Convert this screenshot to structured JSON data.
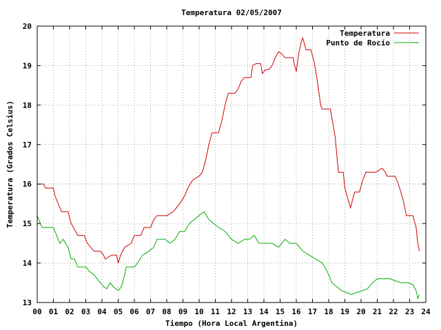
{
  "chart_data": {
    "type": "line",
    "title": "Temperatura 02/05/2007",
    "xlabel": "Tiempo (Hora Local Argentina)",
    "ylabel": "Temperatura (Grados Celsius)",
    "xlim": [
      0,
      24
    ],
    "ylim": [
      13,
      20
    ],
    "x_ticks": [
      "00",
      "01",
      "02",
      "03",
      "04",
      "05",
      "06",
      "07",
      "08",
      "09",
      "10",
      "11",
      "12",
      "13",
      "14",
      "15",
      "16",
      "17",
      "18",
      "19",
      "20",
      "21",
      "22",
      "23",
      "24"
    ],
    "y_ticks": [
      "13",
      "14",
      "15",
      "16",
      "17",
      "18",
      "19",
      "20"
    ],
    "grid": true,
    "legend_position": "top-right",
    "series": [
      {
        "name": "Temperatura",
        "color": "#cc0000",
        "points": [
          [
            0.0,
            16.0
          ],
          [
            0.4,
            16.0
          ],
          [
            0.5,
            15.9
          ],
          [
            1.0,
            15.9
          ],
          [
            1.1,
            15.7
          ],
          [
            1.3,
            15.5
          ],
          [
            1.5,
            15.3
          ],
          [
            1.9,
            15.3
          ],
          [
            2.1,
            15.0
          ],
          [
            2.5,
            14.7
          ],
          [
            2.9,
            14.7
          ],
          [
            3.1,
            14.5
          ],
          [
            3.5,
            14.3
          ],
          [
            3.9,
            14.3
          ],
          [
            4.1,
            14.2
          ],
          [
            4.2,
            14.1
          ],
          [
            4.6,
            14.2
          ],
          [
            4.9,
            14.2
          ],
          [
            5.0,
            14.0
          ],
          [
            5.15,
            14.2
          ],
          [
            5.4,
            14.4
          ],
          [
            5.8,
            14.5
          ],
          [
            6.0,
            14.7
          ],
          [
            6.4,
            14.7
          ],
          [
            6.6,
            14.9
          ],
          [
            7.0,
            14.9
          ],
          [
            7.2,
            15.1
          ],
          [
            7.4,
            15.2
          ],
          [
            8.0,
            15.2
          ],
          [
            8.4,
            15.3
          ],
          [
            8.8,
            15.5
          ],
          [
            9.1,
            15.7
          ],
          [
            9.3,
            15.9
          ],
          [
            9.6,
            16.1
          ],
          [
            10.0,
            16.2
          ],
          [
            10.2,
            16.3
          ],
          [
            10.4,
            16.6
          ],
          [
            10.6,
            17.0
          ],
          [
            10.8,
            17.3
          ],
          [
            11.2,
            17.3
          ],
          [
            11.4,
            17.6
          ],
          [
            11.6,
            18.0
          ],
          [
            11.8,
            18.3
          ],
          [
            12.2,
            18.3
          ],
          [
            12.4,
            18.4
          ],
          [
            12.6,
            18.6
          ],
          [
            12.8,
            18.7
          ],
          [
            13.2,
            18.7
          ],
          [
            13.3,
            19.0
          ],
          [
            13.5,
            19.05
          ],
          [
            13.8,
            19.05
          ],
          [
            13.9,
            18.8
          ],
          [
            14.1,
            18.9
          ],
          [
            14.3,
            18.9
          ],
          [
            14.5,
            19.0
          ],
          [
            14.7,
            19.2
          ],
          [
            14.9,
            19.35
          ],
          [
            15.1,
            19.3
          ],
          [
            15.3,
            19.2
          ],
          [
            15.8,
            19.2
          ],
          [
            15.9,
            19.0
          ],
          [
            16.0,
            18.85
          ],
          [
            16.15,
            19.3
          ],
          [
            16.3,
            19.6
          ],
          [
            16.4,
            19.7
          ],
          [
            16.6,
            19.4
          ],
          [
            16.9,
            19.4
          ],
          [
            17.1,
            19.1
          ],
          [
            17.3,
            18.6
          ],
          [
            17.5,
            18.0
          ],
          [
            17.6,
            17.9
          ],
          [
            18.1,
            17.9
          ],
          [
            18.4,
            17.2
          ],
          [
            18.6,
            16.3
          ],
          [
            18.9,
            16.3
          ],
          [
            19.0,
            15.9
          ],
          [
            19.2,
            15.6
          ],
          [
            19.35,
            15.4
          ],
          [
            19.6,
            15.8
          ],
          [
            19.9,
            15.8
          ],
          [
            20.1,
            16.1
          ],
          [
            20.3,
            16.3
          ],
          [
            20.9,
            16.3
          ],
          [
            21.1,
            16.35
          ],
          [
            21.3,
            16.4
          ],
          [
            21.5,
            16.3
          ],
          [
            21.6,
            16.2
          ],
          [
            22.1,
            16.2
          ],
          [
            22.3,
            16.0
          ],
          [
            22.6,
            15.6
          ],
          [
            22.8,
            15.2
          ],
          [
            23.2,
            15.2
          ],
          [
            23.4,
            14.9
          ],
          [
            23.5,
            14.5
          ],
          [
            23.6,
            14.3
          ]
        ]
      },
      {
        "name": "Punto de Rocío",
        "color": "#00aa00",
        "points": [
          [
            0.0,
            15.2
          ],
          [
            0.15,
            15.05
          ],
          [
            0.3,
            14.9
          ],
          [
            1.0,
            14.9
          ],
          [
            1.2,
            14.7
          ],
          [
            1.4,
            14.5
          ],
          [
            1.6,
            14.6
          ],
          [
            1.9,
            14.4
          ],
          [
            2.1,
            14.1
          ],
          [
            2.3,
            14.1
          ],
          [
            2.5,
            13.9
          ],
          [
            3.0,
            13.9
          ],
          [
            3.2,
            13.8
          ],
          [
            3.5,
            13.7
          ],
          [
            3.9,
            13.5
          ],
          [
            4.1,
            13.4
          ],
          [
            4.3,
            13.35
          ],
          [
            4.5,
            13.5
          ],
          [
            4.7,
            13.4
          ],
          [
            5.0,
            13.3
          ],
          [
            5.2,
            13.4
          ],
          [
            5.4,
            13.7
          ],
          [
            5.5,
            13.9
          ],
          [
            6.0,
            13.9
          ],
          [
            6.2,
            14.0
          ],
          [
            6.5,
            14.2
          ],
          [
            6.9,
            14.3
          ],
          [
            7.2,
            14.4
          ],
          [
            7.4,
            14.6
          ],
          [
            7.9,
            14.6
          ],
          [
            8.2,
            14.5
          ],
          [
            8.5,
            14.6
          ],
          [
            8.8,
            14.8
          ],
          [
            9.1,
            14.8
          ],
          [
            9.4,
            15.0
          ],
          [
            9.7,
            15.1
          ],
          [
            10.0,
            15.2
          ],
          [
            10.3,
            15.3
          ],
          [
            10.6,
            15.1
          ],
          [
            10.9,
            15.0
          ],
          [
            11.2,
            14.9
          ],
          [
            11.6,
            14.8
          ],
          [
            12.0,
            14.6
          ],
          [
            12.4,
            14.5
          ],
          [
            12.8,
            14.6
          ],
          [
            13.1,
            14.6
          ],
          [
            13.4,
            14.7
          ],
          [
            13.7,
            14.5
          ],
          [
            14.1,
            14.5
          ],
          [
            14.5,
            14.5
          ],
          [
            14.9,
            14.4
          ],
          [
            15.3,
            14.6
          ],
          [
            15.6,
            14.5
          ],
          [
            16.0,
            14.5
          ],
          [
            16.4,
            14.3
          ],
          [
            16.8,
            14.2
          ],
          [
            17.2,
            14.1
          ],
          [
            17.6,
            14.0
          ],
          [
            17.9,
            13.8
          ],
          [
            18.2,
            13.5
          ],
          [
            18.5,
            13.4
          ],
          [
            18.8,
            13.3
          ],
          [
            19.1,
            13.25
          ],
          [
            19.4,
            13.2
          ],
          [
            19.7,
            13.25
          ],
          [
            20.1,
            13.3
          ],
          [
            20.4,
            13.35
          ],
          [
            20.7,
            13.5
          ],
          [
            21.0,
            13.6
          ],
          [
            21.4,
            13.6
          ],
          [
            21.8,
            13.6
          ],
          [
            22.1,
            13.55
          ],
          [
            22.5,
            13.5
          ],
          [
            22.9,
            13.5
          ],
          [
            23.2,
            13.45
          ],
          [
            23.4,
            13.3
          ],
          [
            23.5,
            13.1
          ],
          [
            23.6,
            13.2
          ]
        ]
      }
    ]
  },
  "colors": {
    "background": "#ffffff",
    "axis": "#000000",
    "grid": "#a0a0a0"
  }
}
